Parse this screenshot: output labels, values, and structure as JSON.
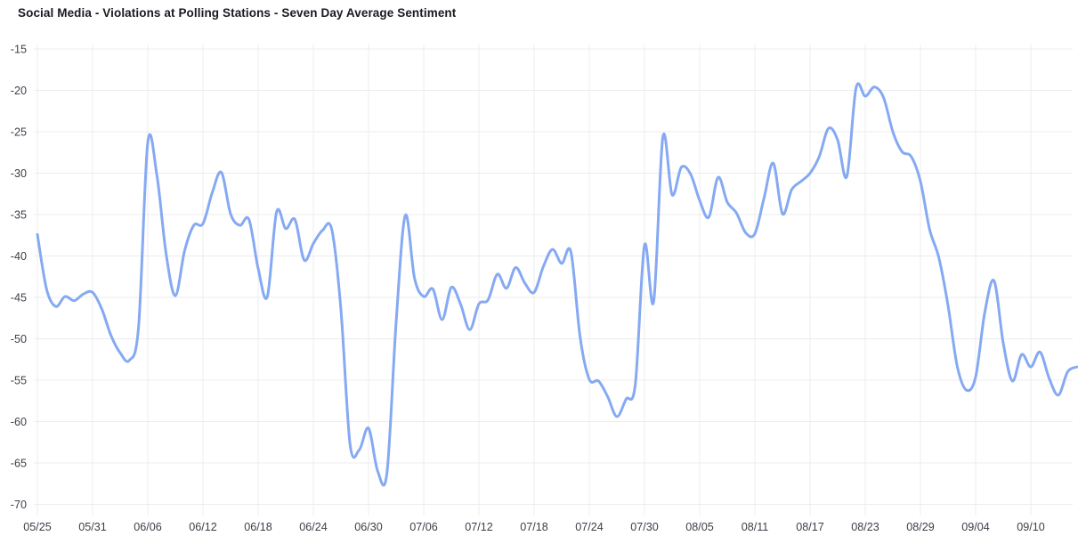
{
  "header": {
    "title": "Social Media - Violations at Polling Stations - Seven Day Average Sentiment"
  },
  "colors": {
    "line": "#85a9f2",
    "grid": "#ececef",
    "axis_labels": "#3c3f48",
    "title": "#181a22",
    "background": "#ffffff"
  },
  "chart_data": {
    "type": "line",
    "title": "Social Media - Violations at Polling Stations - Seven Day Average Sentiment",
    "xlabel": "",
    "ylabel": "",
    "ylim": [
      -70,
      -15
    ],
    "grid": true,
    "legend_position": "none",
    "y_ticks": [
      -15,
      -20,
      -25,
      -30,
      -35,
      -40,
      -45,
      -50,
      -55,
      -60,
      -65,
      -70
    ],
    "x_tick_labels": [
      "05/25",
      "05/31",
      "06/06",
      "06/12",
      "06/18",
      "06/24",
      "06/30",
      "07/06",
      "07/12",
      "07/18",
      "07/24",
      "07/30",
      "08/05",
      "08/11",
      "08/17",
      "08/23",
      "08/29",
      "09/04",
      "09/10"
    ],
    "x_tick_every_days": 6,
    "series": [
      {
        "name": "Seven Day Average Sentiment",
        "color": "#85a9f2",
        "dates": [
          "05/25",
          "05/26",
          "05/27",
          "05/28",
          "05/29",
          "05/30",
          "05/31",
          "06/01",
          "06/02",
          "06/03",
          "06/04",
          "06/05",
          "06/06",
          "06/07",
          "06/08",
          "06/09",
          "06/10",
          "06/11",
          "06/12",
          "06/13",
          "06/14",
          "06/15",
          "06/16",
          "06/17",
          "06/18",
          "06/19",
          "06/20",
          "06/21",
          "06/22",
          "06/23",
          "06/24",
          "06/25",
          "06/26",
          "06/27",
          "06/28",
          "06/29",
          "06/30",
          "07/01",
          "07/02",
          "07/03",
          "07/04",
          "07/05",
          "07/06",
          "07/07",
          "07/08",
          "07/09",
          "07/10",
          "07/11",
          "07/12",
          "07/13",
          "07/14",
          "07/15",
          "07/16",
          "07/17",
          "07/18",
          "07/19",
          "07/20",
          "07/21",
          "07/22",
          "07/23",
          "07/24",
          "07/25",
          "07/26",
          "07/27",
          "07/28",
          "07/29",
          "07/30",
          "07/31",
          "08/01",
          "08/02",
          "08/03",
          "08/04",
          "08/05",
          "08/06",
          "08/07",
          "08/08",
          "08/09",
          "08/10",
          "08/11",
          "08/12",
          "08/13",
          "08/14",
          "08/15",
          "08/16",
          "08/17",
          "08/18",
          "08/19",
          "08/20",
          "08/21",
          "08/22",
          "08/23",
          "08/24",
          "08/25",
          "08/26",
          "08/27",
          "08/28",
          "08/29",
          "08/30",
          "08/31",
          "09/01",
          "09/02",
          "09/03",
          "09/04",
          "09/05",
          "09/06",
          "09/07",
          "09/08",
          "09/09",
          "09/10",
          "09/11",
          "09/12",
          "09/13",
          "09/14",
          "09/15"
        ],
        "values": [
          -37.4,
          -44.0,
          -46.1,
          -44.9,
          -45.4,
          -44.6,
          -44.4,
          -46.4,
          -49.6,
          -51.7,
          -52.6,
          -48.5,
          -26.3,
          -30.3,
          -39.8,
          -44.8,
          -39.4,
          -36.3,
          -36.1,
          -32.4,
          -29.9,
          -34.9,
          -36.3,
          -35.6,
          -41.5,
          -44.9,
          -34.7,
          -36.7,
          -35.6,
          -40.5,
          -38.5,
          -36.9,
          -36.8,
          -46.5,
          -62.8,
          -63.4,
          -60.8,
          -66.0,
          -66.2,
          -48.0,
          -35.1,
          -42.7,
          -44.9,
          -44.0,
          -47.7,
          -43.8,
          -45.8,
          -48.9,
          -45.8,
          -45.3,
          -42.2,
          -43.9,
          -41.4,
          -43.3,
          -44.4,
          -41.3,
          -39.2,
          -40.9,
          -39.5,
          -49.8,
          -54.9,
          -55.1,
          -57.0,
          -59.4,
          -57.3,
          -55.5,
          -38.7,
          -45.5,
          -25.6,
          -32.6,
          -29.3,
          -30.1,
          -33.3,
          -35.3,
          -30.5,
          -33.5,
          -34.8,
          -37.2,
          -37.3,
          -33.0,
          -28.8,
          -34.9,
          -32.0,
          -31.0,
          -30.0,
          -28.0,
          -24.6,
          -26.0,
          -30.4,
          -19.7,
          -20.7,
          -19.6,
          -20.9,
          -25.0,
          -27.4,
          -28.0,
          -31.0,
          -36.8,
          -40.2,
          -46.0,
          -53.3,
          -56.2,
          -54.6,
          -46.8,
          -43.0,
          -50.5,
          -55.1,
          -51.9,
          -53.4,
          -51.6,
          -54.8,
          -56.8,
          -54.0,
          -53.4
        ]
      }
    ]
  }
}
